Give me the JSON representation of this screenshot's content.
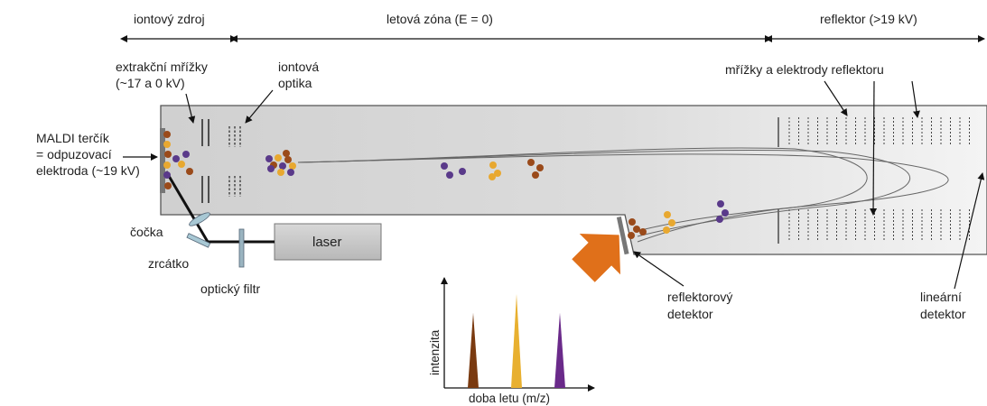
{
  "zones": {
    "ion_source": "iontový zdroj",
    "flight_zone": "letová zóna (E = 0)",
    "reflector": "reflektor (>19 kV)"
  },
  "labels": {
    "extraction_grids_line1": "extrakční mřížky",
    "extraction_grids_line2": "(~17 a 0 kV)",
    "ion_optics_line1": "iontová",
    "ion_optics_line2": "optika",
    "reflector_grids": "mřížky a elektrody reflektoru",
    "maldi_line1": "MALDI terčík",
    "maldi_line2": "= odpuzovací",
    "maldi_line3": "elektroda (~19 kV)",
    "lens": "čočka",
    "mirror": "zrcátko",
    "laser": "laser",
    "optical_filter": "optický filtr",
    "reflector_detector_line1": "reflektorový",
    "reflector_detector_line2": "detektor",
    "linear_detector_line1": "lineární",
    "linear_detector_line2": "detektor"
  },
  "spectrum": {
    "ylabel": "intenzita",
    "xlabel": "doba letu (m/z)",
    "peaks": [
      {
        "position": 0.2,
        "height": 0.8,
        "color": "#7a3a10"
      },
      {
        "position": 0.5,
        "height": 1.0,
        "color": "#e8b030"
      },
      {
        "position": 0.8,
        "height": 0.8,
        "color": "#6a2a8a"
      }
    ]
  },
  "colors": {
    "ion_brown": "#9a4a1a",
    "ion_gold": "#e8a830",
    "ion_purple": "#5a3a8a",
    "arrow_orange": "#e0701a",
    "tube_gray": "#d2d2d2"
  }
}
